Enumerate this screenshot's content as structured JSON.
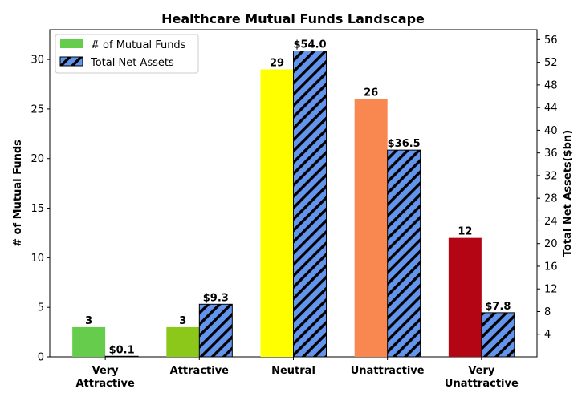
{
  "chart_data": {
    "type": "bar",
    "title": "Healthcare Mutual Funds Landscape",
    "categories": [
      [
        "Very",
        "Attractive"
      ],
      [
        "Attractive"
      ],
      [
        "Neutral"
      ],
      [
        "Unattractive"
      ],
      [
        "Very",
        "Unattractive"
      ]
    ],
    "ylabel": "# of Mutual Funds",
    "y2label": "Total Net Assets($bn)",
    "ylim": [
      0,
      33
    ],
    "y2lim": [
      0,
      57.75
    ],
    "yticks": [
      0,
      5,
      10,
      15,
      20,
      25,
      30
    ],
    "y2ticks": [
      4,
      8,
      12,
      16,
      20,
      24,
      28,
      32,
      36,
      40,
      44,
      48,
      52,
      56
    ],
    "legend_position": "top-left",
    "series": [
      {
        "name": "# of Mutual Funds",
        "axis": "left",
        "values": [
          3,
          3,
          29,
          26,
          12
        ],
        "labels": [
          "3",
          "3",
          "29",
          "26",
          "12"
        ],
        "colors": [
          "#66cc4c",
          "#8cc81a",
          "#ffff00",
          "#f88850",
          "#b40515"
        ],
        "legend_color": "#66cc4c"
      },
      {
        "name": "Total Net Assets",
        "axis": "right",
        "values": [
          0.1,
          9.3,
          54.0,
          36.5,
          7.8
        ],
        "labels": [
          "$0.1",
          "$9.3",
          "$54.0",
          "$36.5",
          "$7.8"
        ],
        "color": "#6495ed",
        "hatch": "diagonal"
      }
    ]
  }
}
